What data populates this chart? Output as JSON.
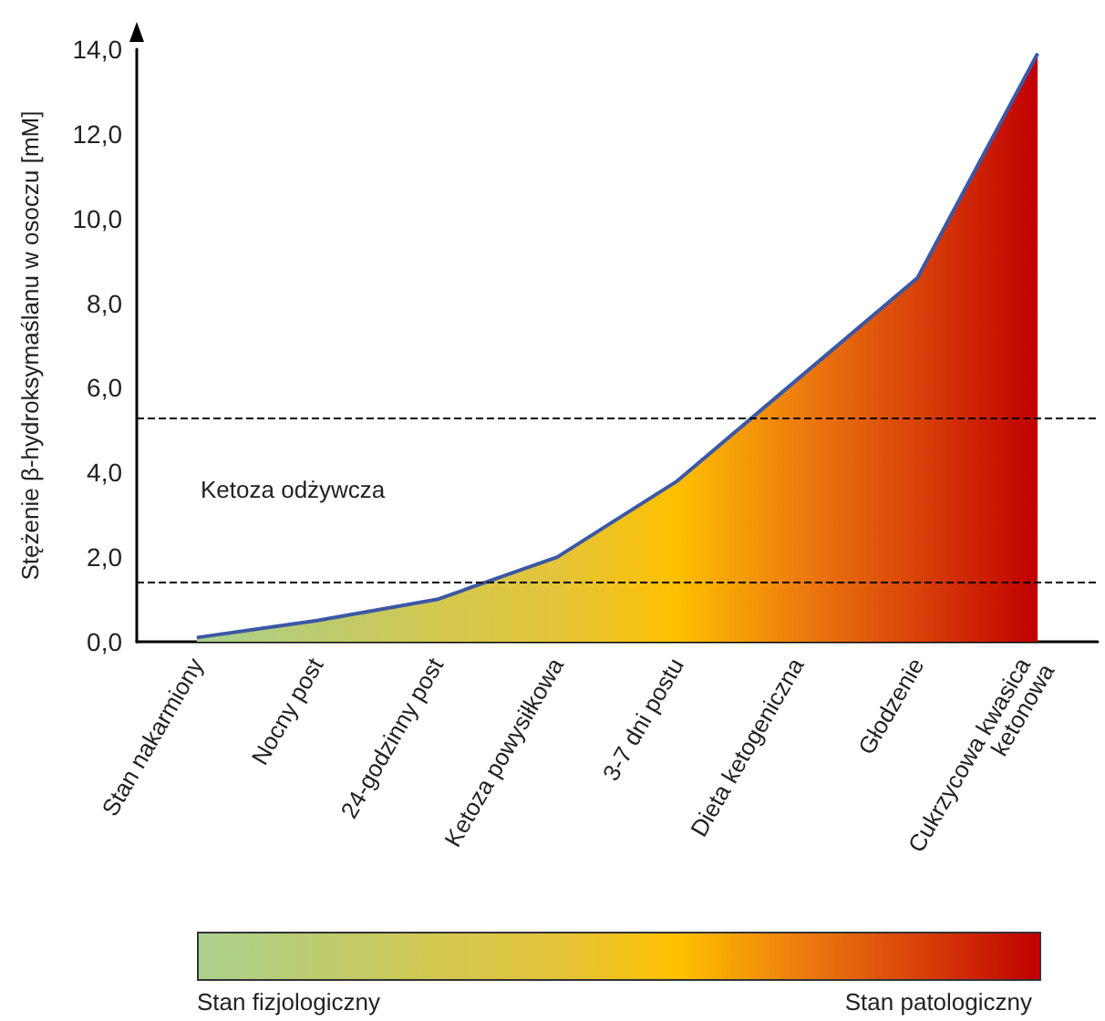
{
  "chart_data": {
    "type": "area",
    "ylabel": "Stężenie β-hydroksymaślanu w osoczu [mM]",
    "categories": [
      "Stan nakarmiony",
      "Nocny post",
      "24-godzinny post",
      "Ketoza powysiłkowa",
      "3-7 dni postu",
      "Dieta ketogeniczna",
      "Głodzenie",
      "Cukrzycowa kwasica ketonowa"
    ],
    "series": [
      {
        "color": "#3b58a5",
        "values": [
          0.1,
          0.5,
          1.0,
          2.0,
          3.8,
          6.2,
          8.6,
          13.9
        ],
        "colors": [
          "#a9d18e",
          "#bccb6f",
          "#d2c850",
          "#e4c43a",
          "#fdc000",
          "#ed7d0f",
          "#d8420a",
          "#c00000"
        ]
      }
    ],
    "ylim": [
      0,
      14
    ],
    "yticks": [
      {
        "value": 0,
        "label": "0,0"
      },
      {
        "value": 2,
        "label": "2,0"
      },
      {
        "value": 4,
        "label": "4,0"
      },
      {
        "value": 6,
        "label": "6,0"
      },
      {
        "value": 8,
        "label": "8,0"
      },
      {
        "value": 10,
        "label": "10,0"
      },
      {
        "value": 12,
        "label": "12,0"
      },
      {
        "value": 14,
        "label": "14,0"
      }
    ],
    "ref_lines": [
      {
        "axis": "y",
        "value": 1.4,
        "color": "#000000",
        "line_style": "dashed"
      },
      {
        "axis": "y",
        "value": 5.3,
        "color": "#000000",
        "line_style": "dashed"
      }
    ],
    "annotations": [
      "Ketoza odżywcza",
      "Stan fizjologiczny",
      "Stan patologiczny"
    ],
    "grid": false,
    "marker": "none"
  }
}
